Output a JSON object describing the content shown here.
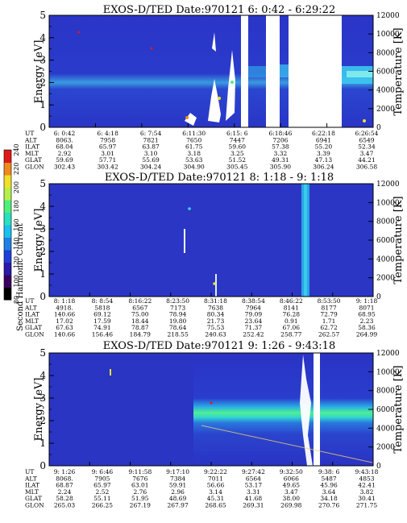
{
  "colorbar": {
    "label": "Second Harmonic Current",
    "ticks": [
      "80",
      "100",
      "120",
      "140",
      "160",
      "180",
      "200",
      "220",
      "240"
    ],
    "colors": [
      "#000000",
      "#3a0060",
      "#2a1aa8",
      "#1f3fd8",
      "#1f7fe6",
      "#19c0f0",
      "#29e0c0",
      "#4ff07a",
      "#b6f04a",
      "#f0e02a",
      "#f08a1a",
      "#e01818"
    ]
  },
  "chart_data": [
    {
      "type": "heatmap",
      "title": "EXOS-D/TED   Date:970121   6: 0:42 - 6:29:22",
      "ylabel": "Energy [eV]",
      "ylabel_right": "Temperature [K]",
      "yticks": [
        "0",
        "1",
        "2",
        "3",
        "4",
        "5"
      ],
      "yticks_right": [
        "0",
        "2000",
        "4000",
        "6000",
        "8000",
        "10000",
        "12000"
      ],
      "ylim": [
        0,
        5
      ],
      "ylim_right": [
        0,
        12000
      ],
      "table_row_labels": [
        "UT",
        "ALT",
        "ILAT",
        "MLT",
        "GLAT",
        "GLON"
      ],
      "table_columns": [
        [
          "6: 0:42",
          "8063.",
          "68.04",
          "2.92",
          "59.69",
          "302.43"
        ],
        [
          "6: 4:18",
          "7958",
          "65.97",
          "3.01",
          "57.71",
          "303.42"
        ],
        [
          "6: 7:54",
          "7821",
          "63.87",
          "3.10",
          "55.69",
          "304.24"
        ],
        [
          "6:11:30",
          "7650",
          "61.75",
          "3.18",
          "53.63",
          "304.90"
        ],
        [
          "6:15: 6",
          "7447",
          "59.60",
          "3.25",
          "51.52",
          "305.45"
        ],
        [
          "6:18:46",
          "7206",
          "57.38",
          "3.32",
          "49.31",
          "305.90"
        ],
        [
          "6:22:18",
          "6941",
          "55.20",
          "3.39",
          "47.13",
          "306.24"
        ],
        [
          "6:26:54",
          "6549",
          "52.34",
          "3.47",
          "44.21",
          "306.58"
        ]
      ],
      "data_gaps_ut": [
        [
          "6:18:00",
          "6:18:40"
        ],
        [
          "6:19:40",
          "6:20:50"
        ],
        [
          "6:22:00",
          "6:25:40"
        ]
      ],
      "temperature_band_K": [
        4500,
        7000
      ]
    },
    {
      "type": "heatmap",
      "title": "EXOS-D/TED   Date:970121   8: 1:18 - 9: 1:18",
      "ylabel": "Energy [eV]",
      "ylabel_right": "Temperature [K]",
      "yticks": [
        "0",
        "1",
        "2",
        "3",
        "4",
        "5"
      ],
      "yticks_right": [
        "0",
        "2000",
        "4000",
        "6000",
        "8000",
        "10000",
        "12000"
      ],
      "ylim": [
        0,
        5
      ],
      "ylim_right": [
        0,
        12000
      ],
      "table_row_labels": [
        "UT",
        "ALT",
        "ILAT",
        "MLT",
        "GLAT",
        "GLON"
      ],
      "table_columns": [
        [
          "8: 1:18",
          "4918.",
          "140.66",
          "17.02",
          "67.63",
          "140.66"
        ],
        [
          "8: 8:54",
          "5818",
          "69.12",
          "17.59",
          "74.91",
          "156.46"
        ],
        [
          "8:16:22",
          "6567",
          "75.00",
          "18.44",
          "78.87",
          "184.79"
        ],
        [
          "8:23:50",
          "7173",
          "78.94",
          "19.80",
          "78.64",
          "218.55"
        ],
        [
          "8:31:18",
          "7638",
          "80.34",
          "21.73",
          "75.53",
          "240.63"
        ],
        [
          "8:38:54",
          "7964",
          "79.09",
          "23.64",
          "71.37",
          "252.42"
        ],
        [
          "8:46:22",
          "8141",
          "76.28",
          "0.91",
          "67.06",
          "258.77"
        ],
        [
          "8:53:50",
          "8177",
          "72.79",
          "1.71",
          "62.72",
          "262.57"
        ],
        [
          "9: 1:18",
          "8071",
          "68.95",
          "2.23",
          "58.36",
          "264.99"
        ]
      ],
      "bright_band_ut": [
        "8:46:00",
        "8:46:50"
      ]
    },
    {
      "type": "heatmap",
      "title": "EXOS-D/TED   Date:970121   9: 1:26 - 9:43:18",
      "ylabel": "Energy [eV]",
      "ylabel_right": "Temperature [K]",
      "yticks": [
        "0",
        "1",
        "2",
        "3",
        "4",
        "5"
      ],
      "yticks_right": [
        "0",
        "2000",
        "4000",
        "6000",
        "8000",
        "10000",
        "12000"
      ],
      "ylim": [
        0,
        5
      ],
      "ylim_right": [
        0,
        12000
      ],
      "table_row_labels": [
        "UT",
        "ALT",
        "ILAT",
        "MLT",
        "GLAT",
        "GLON"
      ],
      "table_columns": [
        [
          "9: 1:26",
          "8068.",
          "68.87",
          "2.24",
          "58.28",
          "265.03"
        ],
        [
          "9: 6:46",
          "7905",
          "65.97",
          "2.52",
          "55.11",
          "266.25"
        ],
        [
          "9:11:58",
          "7676",
          "63.01",
          "2.76",
          "51.95",
          "267.19"
        ],
        [
          "9:17:10",
          "7384",
          "59.91",
          "2.96",
          "48.69",
          "267.97"
        ],
        [
          "9:22:22",
          "7011",
          "56.66",
          "3.14",
          "45.31",
          "268.65"
        ],
        [
          "9:27:42",
          "6564",
          "53.17",
          "3.31",
          "41.68",
          "269.31"
        ],
        [
          "9:32:50",
          "6066",
          "49.65",
          "3.47",
          "38.00",
          "269.98"
        ],
        [
          "9:38: 6",
          "5487",
          "45.96",
          "3.64",
          "34.18",
          "270.76"
        ],
        [
          "9:43:18",
          "4853",
          "42.41",
          "3.82",
          "30.41",
          "271.75"
        ]
      ],
      "data_gap_ut": [
        "9:35:10",
        "9:35:50"
      ],
      "temperature_band_K": [
        4500,
        7000
      ]
    }
  ]
}
